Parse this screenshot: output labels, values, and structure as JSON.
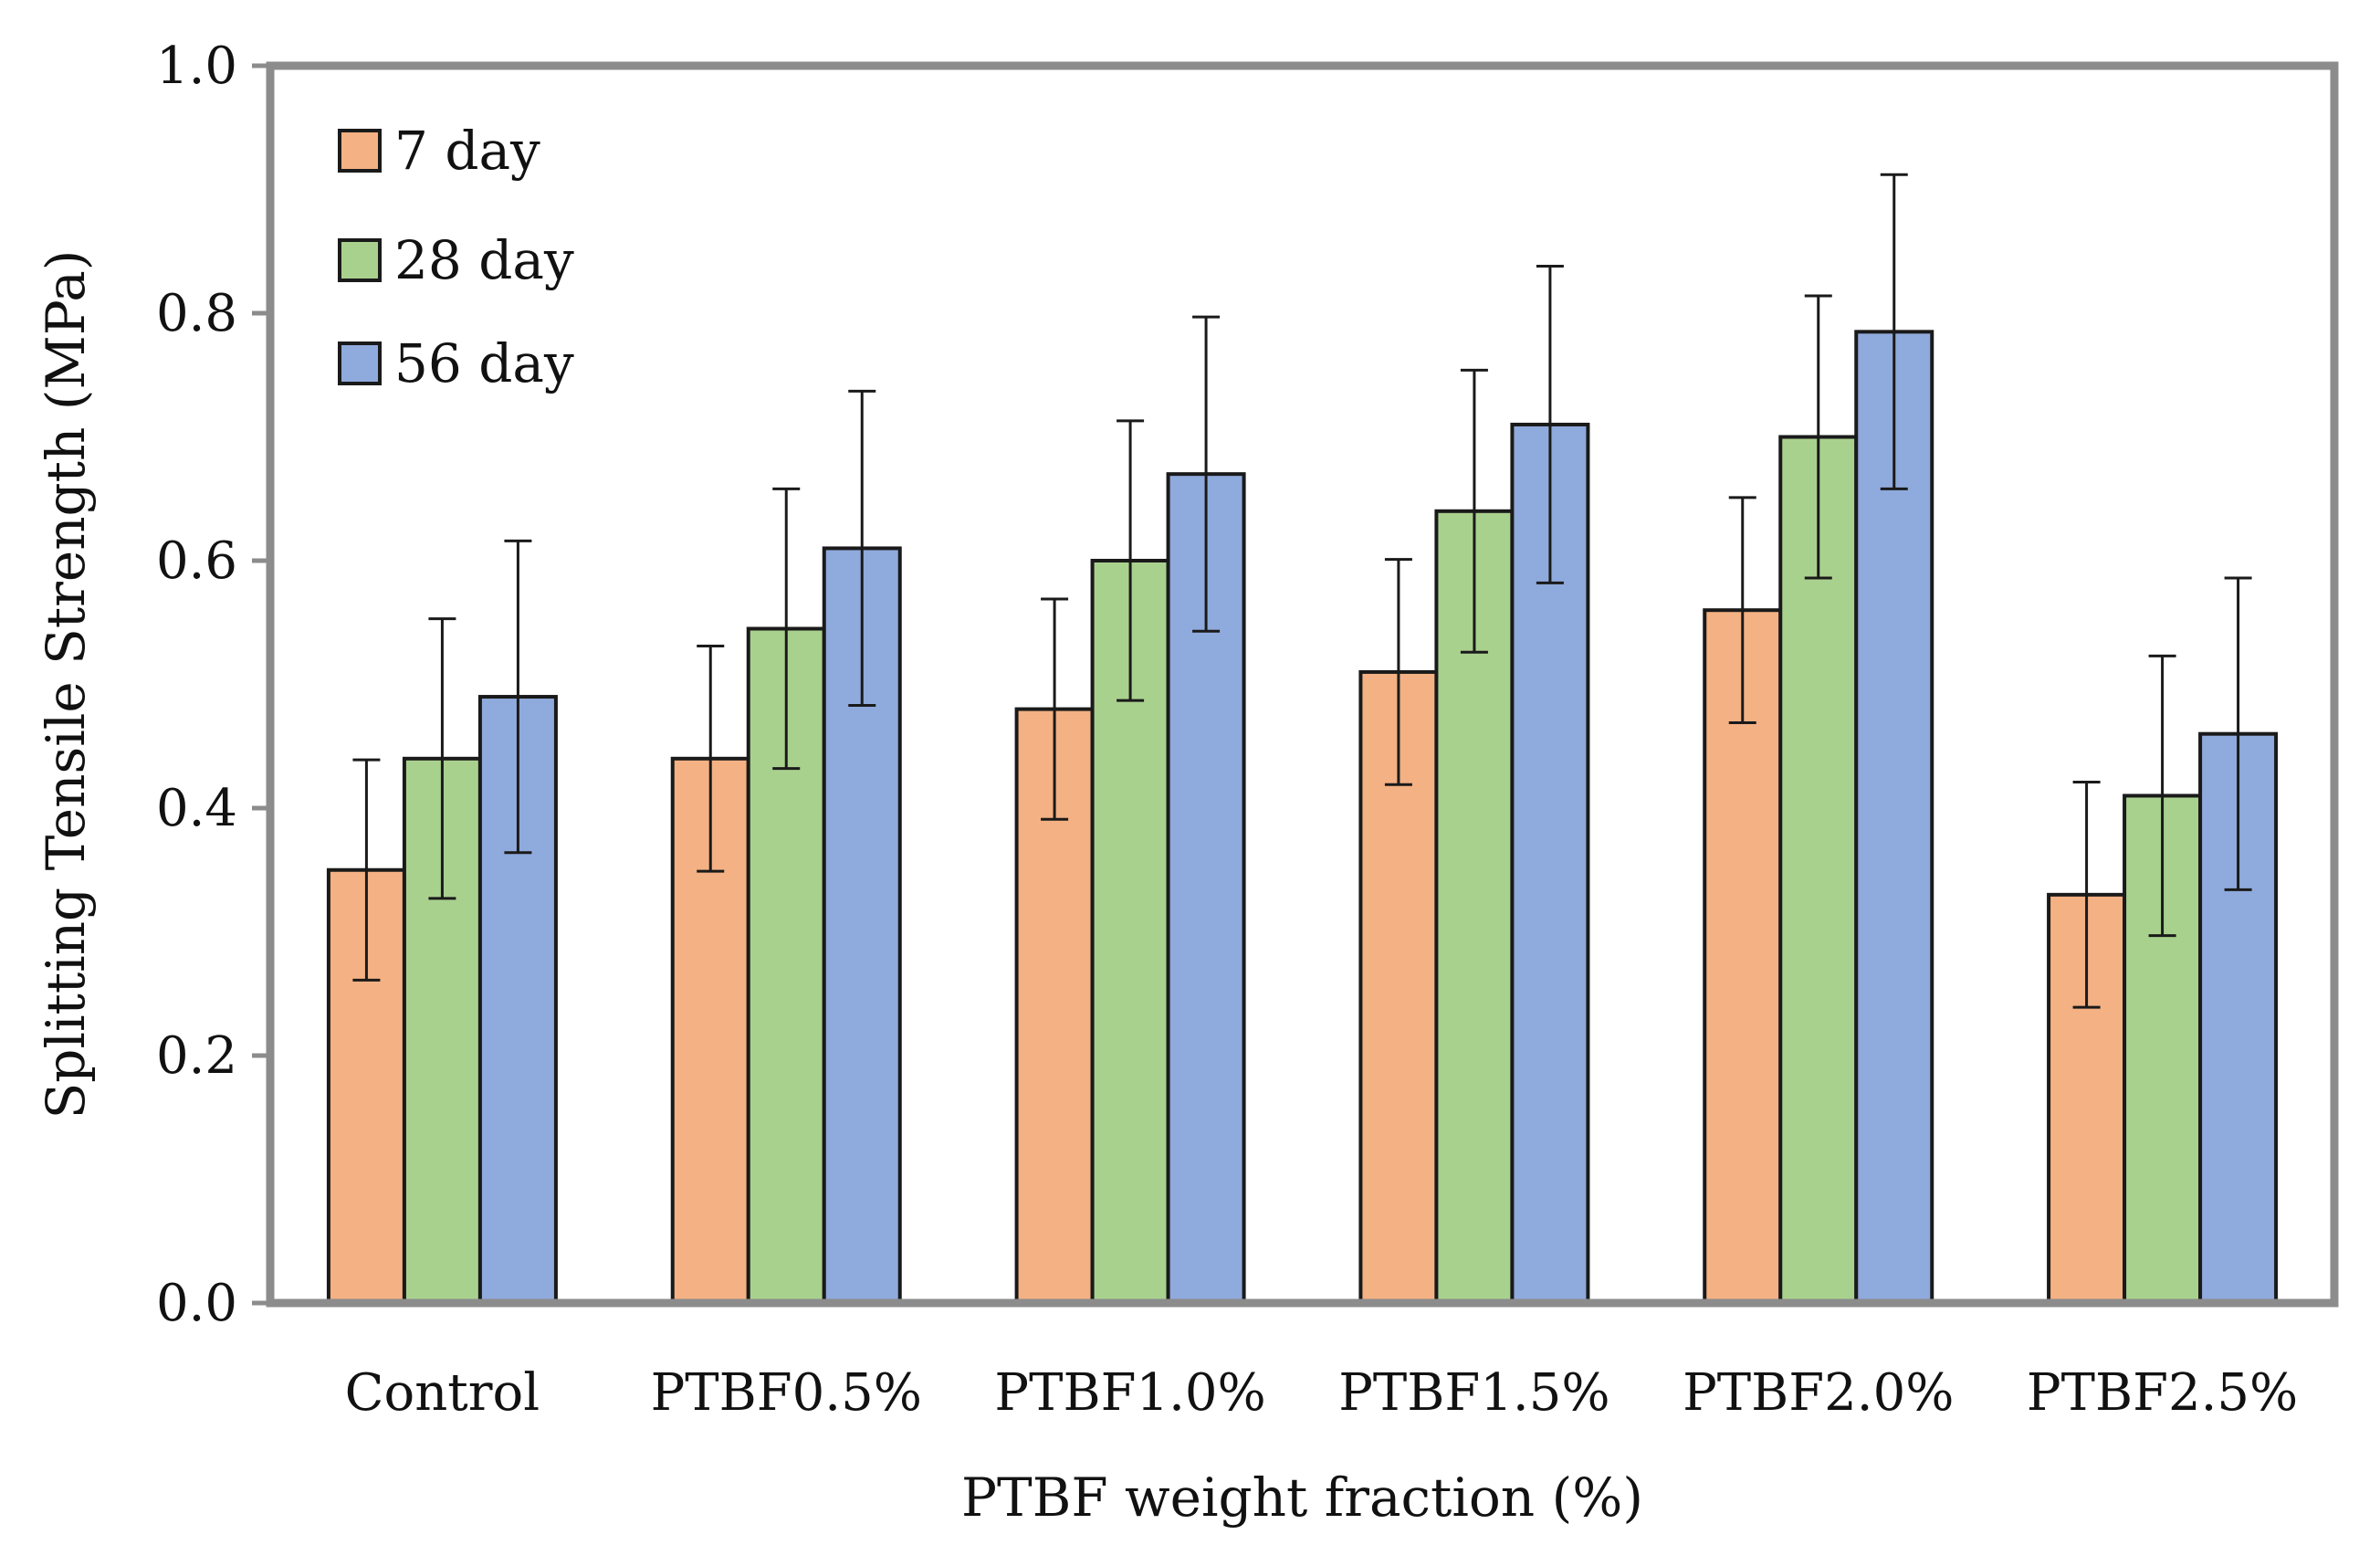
{
  "chart_data": {
    "type": "bar",
    "title": "",
    "xlabel": "PTBF weight fraction (%)",
    "ylabel": "Splitting Tensile Strength (MPa)",
    "ylim": [
      0,
      1.0
    ],
    "yticks": [
      "0.0",
      "0.2",
      "0.4",
      "0.6",
      "0.8",
      "1.0"
    ],
    "categories": [
      "Control",
      "PTBF0.5%",
      "PTBF1.0%",
      "PTBF1.5%",
      "PTBF2.0%",
      "PTBF2.5%"
    ],
    "legend_position": "top-left",
    "grid": false,
    "series": [
      {
        "name": "7 day",
        "color": "#F4B183",
        "values": [
          0.35,
          0.44,
          0.48,
          0.51,
          0.56,
          0.33
        ],
        "error": [
          0.089,
          0.091,
          0.089,
          0.091,
          0.091,
          0.091
        ]
      },
      {
        "name": "28 day",
        "color": "#A9D18E",
        "values": [
          0.44,
          0.545,
          0.6,
          0.64,
          0.7,
          0.41
        ],
        "error": [
          0.113,
          0.113,
          0.113,
          0.114,
          0.114,
          0.113
        ]
      },
      {
        "name": "56 day",
        "color": "#8FAADC",
        "values": [
          0.49,
          0.61,
          0.67,
          0.71,
          0.785,
          0.46
        ],
        "error": [
          0.126,
          0.127,
          0.127,
          0.128,
          0.127,
          0.126
        ]
      }
    ]
  }
}
